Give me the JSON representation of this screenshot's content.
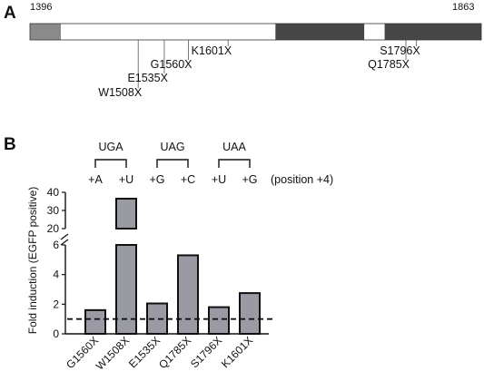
{
  "panel_a": {
    "letter": "A",
    "start_label": "1396",
    "end_label": "1863",
    "domain_start": 1396,
    "domain_end": 1863,
    "segments": [
      {
        "from": 1396,
        "to": 1428,
        "color": "#8a8a8a"
      },
      {
        "from": 1428,
        "to": 1650,
        "color": "#ffffff"
      },
      {
        "from": 1650,
        "to": 1742,
        "color": "#474747"
      },
      {
        "from": 1742,
        "to": 1763,
        "color": "#ffffff"
      },
      {
        "from": 1763,
        "to": 1863,
        "color": "#474747"
      }
    ],
    "mutations": [
      {
        "label": "W1508X",
        "pos": 1508,
        "level": 4
      },
      {
        "label": "E1535X",
        "pos": 1535,
        "level": 3
      },
      {
        "label": "G1560X",
        "pos": 1560,
        "level": 2
      },
      {
        "label": "K1601X",
        "pos": 1601,
        "level": 1
      },
      {
        "label": "S1796X",
        "pos": 1796,
        "level": 1
      },
      {
        "label": "Q1785X",
        "pos": 1785,
        "level": 2
      }
    ]
  },
  "panel_b": {
    "letter": "B",
    "codons": [
      {
        "label": "UGA"
      },
      {
        "label": "UAG"
      },
      {
        "label": "UAA"
      }
    ],
    "nucleotides": [
      "+A",
      "+U",
      "+G",
      "+C",
      "+U",
      "+G"
    ],
    "position_note": "(position +4)"
  },
  "chart_data": {
    "type": "bar",
    "categories": [
      "G1560X",
      "W1508X",
      "E1535X",
      "Q1785X",
      "S1796X",
      "K1601X"
    ],
    "values": [
      1.6,
      36.5,
      2.05,
      5.3,
      1.8,
      2.75
    ],
    "ylabel": "Fold induction (EGFP positive)",
    "broken_axis": true,
    "lower_range": [
      0,
      6
    ],
    "upper_range": [
      20,
      40
    ],
    "lower_ticks": [
      "0",
      "2",
      "4",
      "6"
    ],
    "upper_ticks": [
      "20",
      "30",
      "40"
    ],
    "reference_line": 1,
    "bar_color": "#9a9aa4",
    "grid": false
  }
}
